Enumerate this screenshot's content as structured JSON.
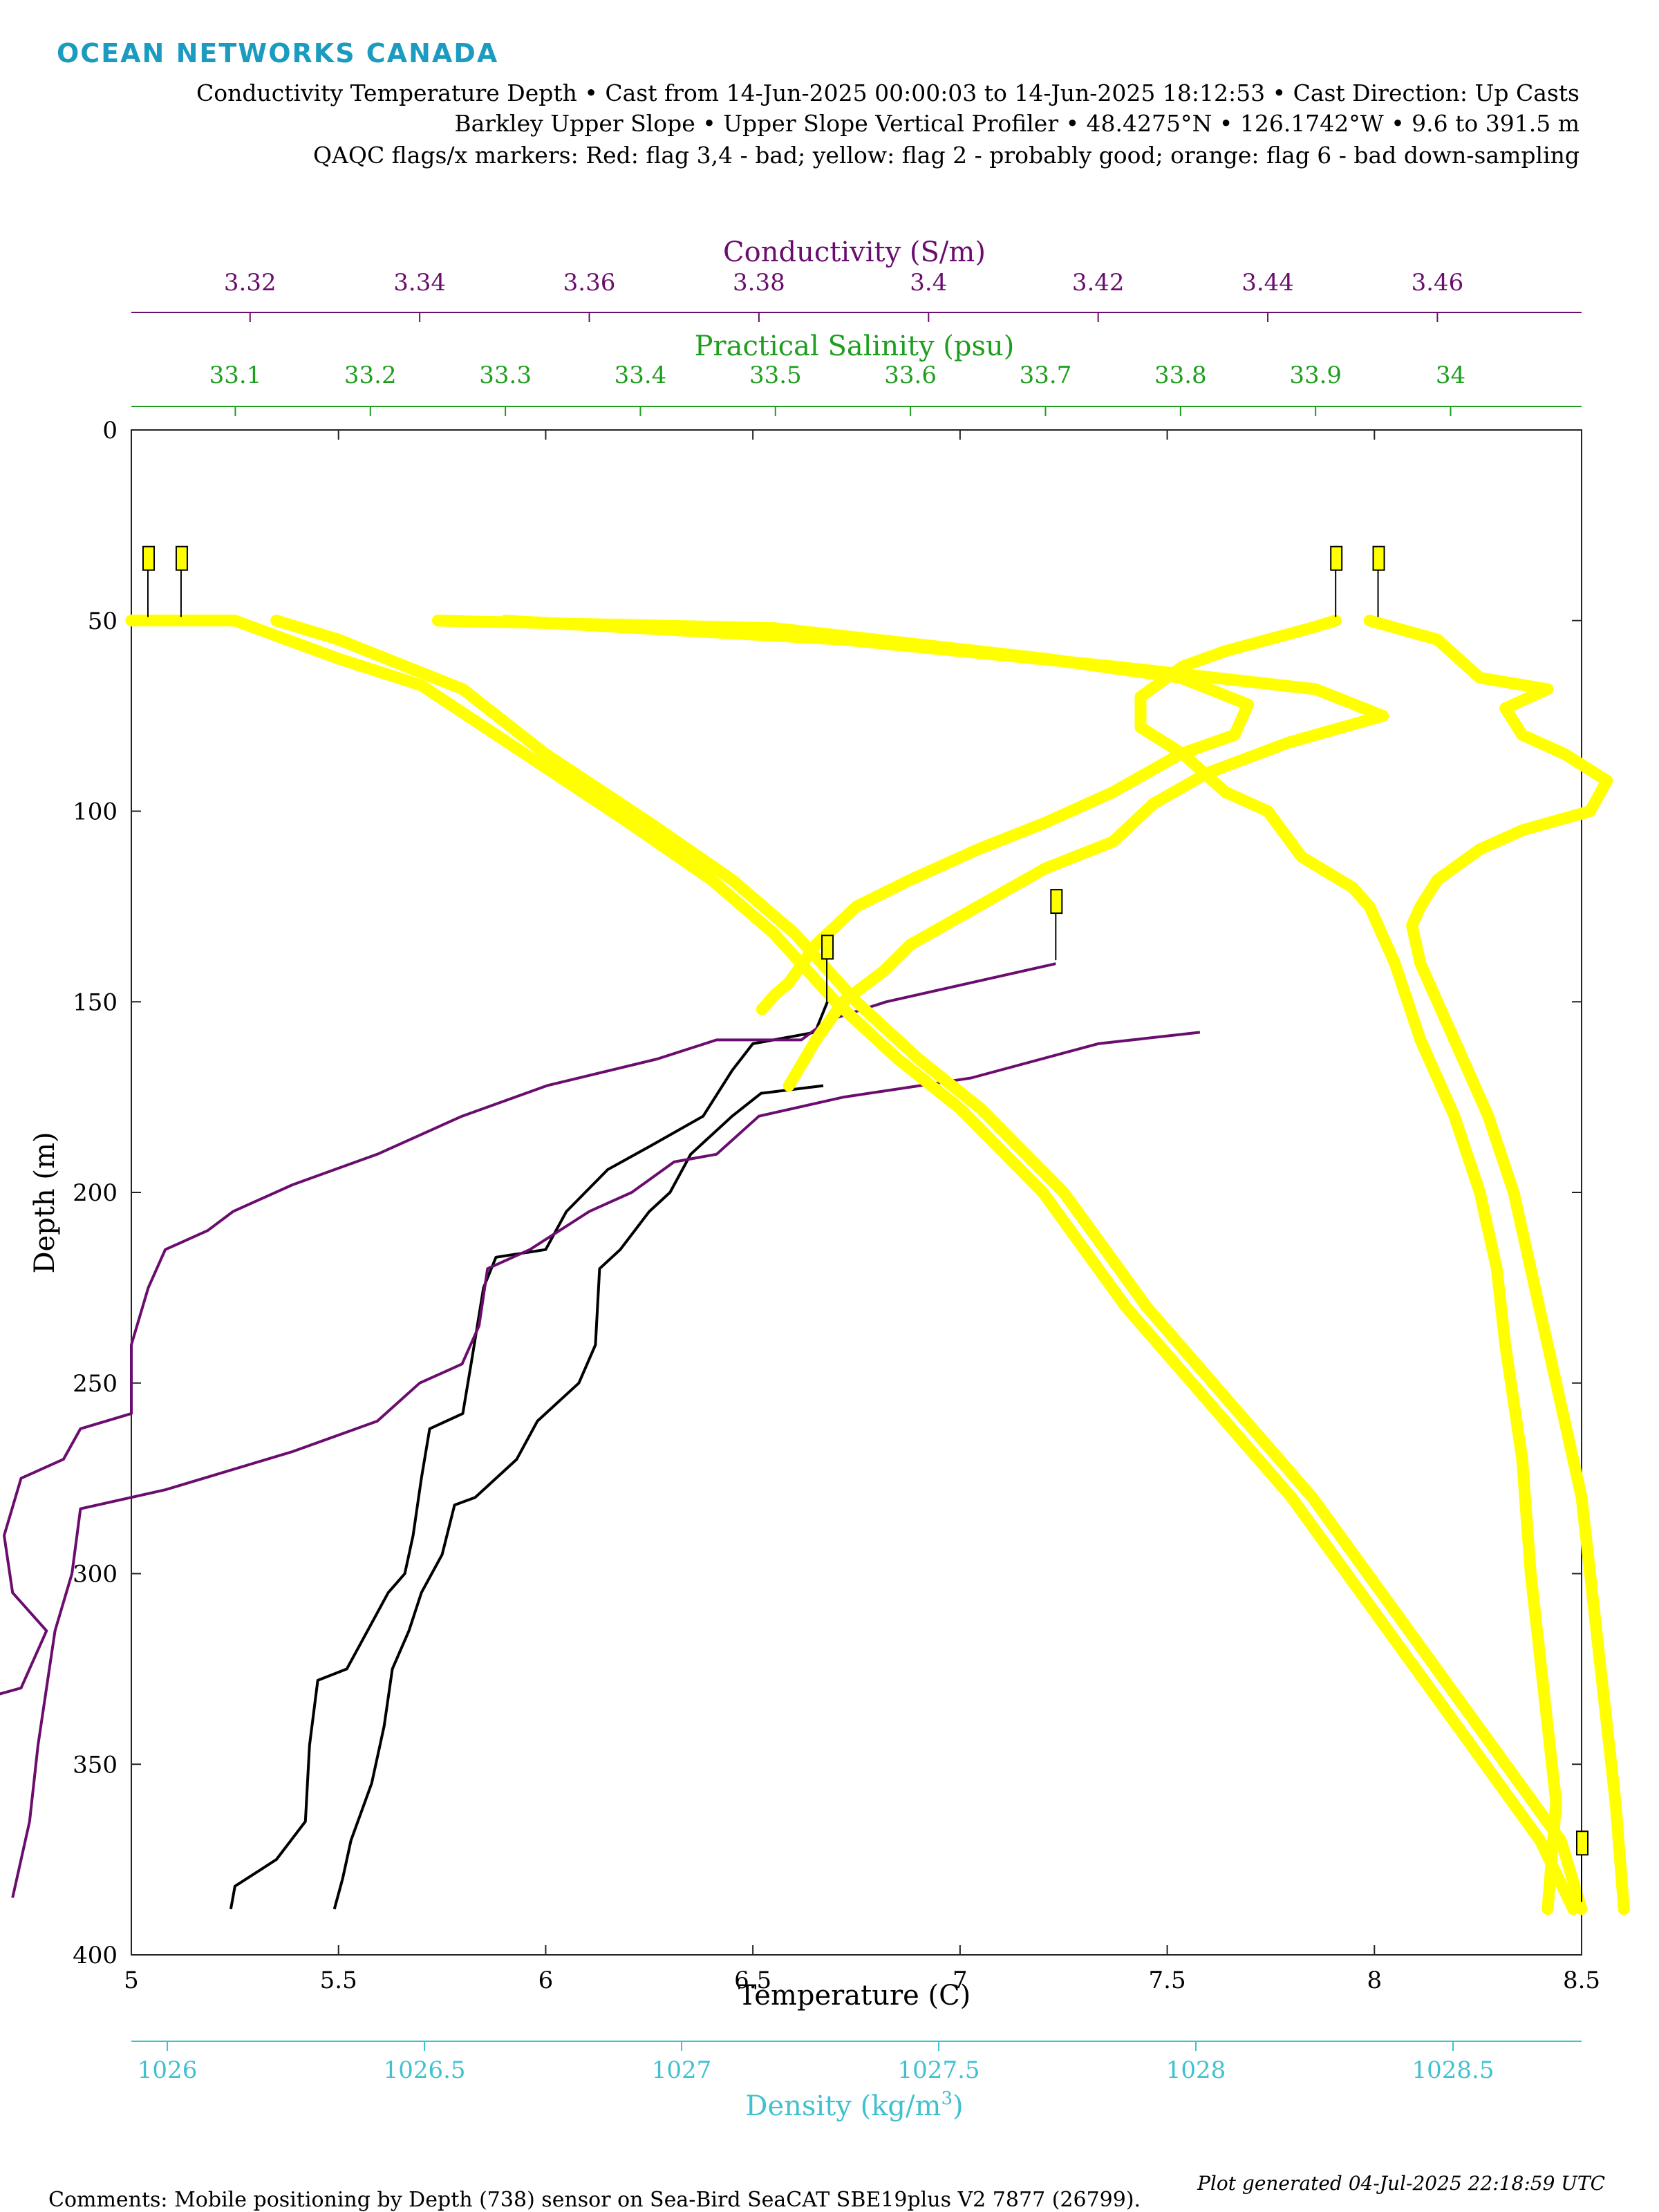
{
  "header": {
    "brand": "OCEAN NETWORKS CANADA",
    "line1": "Conductivity Temperature Depth • Cast from 14-Jun-2025 00:00:03 to 14-Jun-2025 18:12:53 • Cast Direction: Up Casts",
    "line2": "Barkley Upper Slope • Upper Slope Vertical Profiler • 48.4275°N • 126.1742°W • 9.6 to 391.5 m",
    "line3": "QAQC flags/x markers: Red: flag 3,4 - bad; yellow: flag 2 - probably good; orange: flag 6 - bad down-sampling"
  },
  "footer": {
    "comments": "Comments: Mobile positioning by Depth (738) sensor on Sea-Bird SeaCAT SBE19plus V2 7877 (26799).",
    "generated": "Plot generated 04-Jul-2025 22:18:59 UTC"
  },
  "colors": {
    "brand": "#1a9bbf",
    "conductivity": "#6a0d6e",
    "salinity": "#1e9e1e",
    "temperature": "#000000",
    "density": "#3fc1d0",
    "flag_probably_good": "#ffff00"
  },
  "chart_data": {
    "type": "line",
    "y_axis": {
      "label": "Depth (m)",
      "range": [
        0,
        400
      ],
      "inverted": true,
      "ticks": [
        "0",
        "50",
        "100",
        "150",
        "200",
        "250",
        "300",
        "350",
        "400"
      ]
    },
    "axes": {
      "temperature": {
        "label": "Temperature (C)",
        "position": "bottom",
        "range": [
          5,
          8.5
        ],
        "ticks": [
          5,
          5.5,
          6,
          6.5,
          7,
          7.5,
          8,
          8.5
        ],
        "tick_labels": [
          "5",
          "5.5",
          "6",
          "6.5",
          "7",
          "7.5",
          "8",
          "8.5"
        ]
      },
      "density": {
        "label": "Density (kg/m",
        "label_sup": "3",
        "label_end": ")",
        "position": "bottom-offset",
        "range": [
          1025.93,
          1028.75
        ],
        "ticks": [
          1026,
          1026.5,
          1027,
          1027.5,
          1028,
          1028.5
        ],
        "tick_labels": [
          "1026",
          "1026.5",
          "1027",
          "1027.5",
          "1028",
          "1028.5"
        ]
      },
      "conductivity": {
        "label": "Conductivity (S/m)",
        "position": "top",
        "range": [
          3.306,
          3.477
        ],
        "ticks": [
          3.32,
          3.34,
          3.36,
          3.38,
          3.4,
          3.42,
          3.44,
          3.46
        ],
        "tick_labels": [
          "3.32",
          "3.34",
          "3.36",
          "3.38",
          "3.4",
          "3.42",
          "3.44",
          "3.46"
        ]
      },
      "salinity": {
        "label": "Practical Salinity (psu)",
        "position": "top-offset",
        "range": [
          33.023,
          34.097
        ],
        "ticks": [
          33.1,
          33.2,
          33.3,
          33.4,
          33.5,
          33.6,
          33.7,
          33.8,
          33.9,
          34
        ],
        "tick_labels": [
          "33.1",
          "33.2",
          "33.3",
          "33.4",
          "33.5",
          "33.6",
          "33.7",
          "33.8",
          "33.9",
          "34"
        ]
      }
    },
    "series": [
      {
        "axis": "temperature",
        "flag": "good",
        "points": [
          [
            6.68,
            150
          ],
          [
            6.65,
            158
          ],
          [
            6.5,
            161
          ],
          [
            6.45,
            168
          ],
          [
            6.38,
            180
          ],
          [
            6.25,
            188
          ],
          [
            6.15,
            194
          ],
          [
            6.05,
            205
          ],
          [
            6.0,
            215
          ],
          [
            5.88,
            217
          ],
          [
            5.85,
            225
          ],
          [
            5.82,
            245
          ],
          [
            5.8,
            258
          ],
          [
            5.72,
            262
          ],
          [
            5.7,
            275
          ],
          [
            5.68,
            290
          ],
          [
            5.66,
            300
          ],
          [
            5.62,
            305
          ],
          [
            5.57,
            315
          ],
          [
            5.52,
            325
          ],
          [
            5.45,
            328
          ],
          [
            5.43,
            345
          ],
          [
            5.42,
            365
          ],
          [
            5.35,
            375
          ],
          [
            5.25,
            382
          ],
          [
            5.24,
            388
          ]
        ]
      },
      {
        "axis": "temperature",
        "flag": "good",
        "points": [
          [
            6.67,
            172
          ],
          [
            6.52,
            174
          ],
          [
            6.45,
            180
          ],
          [
            6.35,
            190
          ],
          [
            6.3,
            200
          ],
          [
            6.25,
            205
          ],
          [
            6.18,
            215
          ],
          [
            6.13,
            220
          ],
          [
            6.12,
            240
          ],
          [
            6.08,
            250
          ],
          [
            6.03,
            255
          ],
          [
            5.98,
            260
          ],
          [
            5.93,
            270
          ],
          [
            5.83,
            280
          ],
          [
            5.78,
            282
          ],
          [
            5.75,
            295
          ],
          [
            5.7,
            305
          ],
          [
            5.67,
            315
          ],
          [
            5.63,
            325
          ],
          [
            5.61,
            340
          ],
          [
            5.58,
            355
          ],
          [
            5.53,
            370
          ],
          [
            5.51,
            380
          ],
          [
            5.49,
            388
          ]
        ]
      },
      {
        "axis": "conductivity",
        "flag": "good",
        "points": [
          [
            3.415,
            140
          ],
          [
            3.405,
            145
          ],
          [
            3.395,
            150
          ],
          [
            3.388,
            155
          ],
          [
            3.385,
            160
          ],
          [
            3.375,
            160
          ],
          [
            3.368,
            165
          ],
          [
            3.355,
            172
          ],
          [
            3.345,
            180
          ],
          [
            3.335,
            190
          ],
          [
            3.325,
            198
          ],
          [
            3.318,
            205
          ],
          [
            3.315,
            210
          ],
          [
            3.31,
            215
          ],
          [
            3.308,
            225
          ],
          [
            3.306,
            240
          ],
          [
            3.306,
            258
          ],
          [
            3.3,
            262
          ],
          [
            3.298,
            270
          ],
          [
            3.293,
            275
          ],
          [
            3.291,
            290
          ],
          [
            3.292,
            305
          ],
          [
            3.296,
            315
          ],
          [
            3.293,
            330
          ],
          [
            3.285,
            335
          ],
          [
            3.283,
            360
          ],
          [
            3.275,
            375
          ],
          [
            3.262,
            385
          ]
        ]
      },
      {
        "axis": "conductivity",
        "flag": "good",
        "points": [
          [
            3.432,
            158
          ],
          [
            3.42,
            161
          ],
          [
            3.405,
            170
          ],
          [
            3.39,
            175
          ],
          [
            3.38,
            180
          ],
          [
            3.375,
            190
          ],
          [
            3.37,
            192
          ],
          [
            3.365,
            200
          ],
          [
            3.36,
            205
          ],
          [
            3.353,
            215
          ],
          [
            3.348,
            220
          ],
          [
            3.347,
            235
          ],
          [
            3.345,
            245
          ],
          [
            3.34,
            250
          ],
          [
            3.335,
            260
          ],
          [
            3.325,
            268
          ],
          [
            3.31,
            278
          ],
          [
            3.3,
            283
          ],
          [
            3.299,
            300
          ],
          [
            3.297,
            315
          ],
          [
            3.296,
            330
          ],
          [
            3.295,
            345
          ],
          [
            3.294,
            365
          ],
          [
            3.292,
            385
          ]
        ]
      },
      {
        "axis": "salinity",
        "flag": "probably-good",
        "points": [
          [
            33.25,
            50
          ],
          [
            33.5,
            52
          ],
          [
            33.7,
            60
          ],
          [
            33.8,
            65
          ],
          [
            33.85,
            72
          ],
          [
            33.84,
            80
          ],
          [
            33.8,
            85
          ],
          [
            33.75,
            95
          ],
          [
            33.7,
            103
          ],
          [
            33.65,
            110
          ],
          [
            33.6,
            118
          ],
          [
            33.56,
            125
          ],
          [
            33.53,
            135
          ],
          [
            33.51,
            145
          ],
          [
            33.5,
            148
          ],
          [
            33.49,
            152
          ]
        ]
      },
      {
        "axis": "salinity",
        "flag": "probably-good",
        "points": [
          [
            33.3,
            50
          ],
          [
            33.55,
            55
          ],
          [
            33.75,
            62
          ],
          [
            33.9,
            68
          ],
          [
            33.95,
            75
          ],
          [
            33.88,
            82
          ],
          [
            33.82,
            90
          ],
          [
            33.78,
            98
          ],
          [
            33.75,
            108
          ],
          [
            33.7,
            115
          ],
          [
            33.65,
            125
          ],
          [
            33.6,
            135
          ],
          [
            33.58,
            142
          ],
          [
            33.55,
            150
          ],
          [
            33.53,
            160
          ],
          [
            33.51,
            172
          ]
        ]
      },
      {
        "axis": "temperature",
        "flag": "probably-good",
        "points": [
          [
            5.0,
            50
          ],
          [
            5.25,
            50
          ],
          [
            5.5,
            60
          ],
          [
            5.7,
            67
          ],
          [
            5.95,
            85
          ],
          [
            6.2,
            103
          ],
          [
            6.4,
            118
          ],
          [
            6.55,
            132
          ],
          [
            6.7,
            150
          ],
          [
            6.85,
            165
          ],
          [
            7.0,
            178
          ],
          [
            7.2,
            200
          ],
          [
            7.4,
            230
          ],
          [
            7.6,
            255
          ],
          [
            7.8,
            280
          ],
          [
            8.0,
            310
          ],
          [
            8.2,
            340
          ],
          [
            8.4,
            370
          ],
          [
            8.48,
            388
          ]
        ]
      },
      {
        "axis": "temperature",
        "flag": "probably-good",
        "points": [
          [
            5.35,
            50
          ],
          [
            5.5,
            55
          ],
          [
            5.8,
            68
          ],
          [
            6.0,
            85
          ],
          [
            6.25,
            103
          ],
          [
            6.45,
            118
          ],
          [
            6.6,
            132
          ],
          [
            6.75,
            150
          ],
          [
            6.9,
            165
          ],
          [
            7.05,
            178
          ],
          [
            7.25,
            200
          ],
          [
            7.45,
            230
          ],
          [
            7.65,
            255
          ],
          [
            7.85,
            280
          ],
          [
            8.05,
            310
          ],
          [
            8.25,
            340
          ],
          [
            8.45,
            370
          ],
          [
            8.5,
            388
          ]
        ]
      },
      {
        "axis": "conductivity",
        "flag": "probably-good",
        "points": [
          [
            3.448,
            50
          ],
          [
            3.445,
            52
          ],
          [
            3.435,
            58
          ],
          [
            3.43,
            62
          ],
          [
            3.425,
            70
          ],
          [
            3.425,
            78
          ],
          [
            3.43,
            85
          ],
          [
            3.435,
            95
          ],
          [
            3.44,
            100
          ],
          [
            3.444,
            112
          ],
          [
            3.45,
            120
          ],
          [
            3.452,
            125
          ],
          [
            3.455,
            140
          ],
          [
            3.458,
            160
          ],
          [
            3.462,
            180
          ],
          [
            3.465,
            200
          ],
          [
            3.467,
            220
          ],
          [
            3.468,
            240
          ],
          [
            3.47,
            270
          ],
          [
            3.471,
            300
          ],
          [
            3.472,
            320
          ],
          [
            3.473,
            340
          ],
          [
            3.474,
            360
          ],
          [
            3.473,
            388
          ]
        ]
      },
      {
        "axis": "conductivity",
        "flag": "probably-good",
        "points": [
          [
            3.452,
            50
          ],
          [
            3.46,
            55
          ],
          [
            3.465,
            65
          ],
          [
            3.473,
            68
          ],
          [
            3.468,
            73
          ],
          [
            3.47,
            80
          ],
          [
            3.475,
            85
          ],
          [
            3.48,
            92
          ],
          [
            3.478,
            100
          ],
          [
            3.47,
            105
          ],
          [
            3.465,
            110
          ],
          [
            3.46,
            118
          ],
          [
            3.458,
            125
          ],
          [
            3.457,
            130
          ],
          [
            3.458,
            140
          ],
          [
            3.462,
            160
          ],
          [
            3.466,
            180
          ],
          [
            3.469,
            200
          ],
          [
            3.471,
            220
          ],
          [
            3.473,
            240
          ],
          [
            3.475,
            260
          ],
          [
            3.477,
            280
          ],
          [
            3.478,
            300
          ],
          [
            3.479,
            320
          ],
          [
            3.48,
            340
          ],
          [
            3.481,
            360
          ],
          [
            3.482,
            388
          ]
        ]
      }
    ],
    "flag_markers": [
      {
        "axis": "temperature",
        "x": 5.04,
        "y": 48
      },
      {
        "axis": "temperature",
        "x": 5.12,
        "y": 48
      },
      {
        "axis": "conductivity",
        "x": 3.448,
        "y": 48
      },
      {
        "axis": "conductivity",
        "x": 3.453,
        "y": 48
      },
      {
        "axis": "conductivity",
        "x": 3.388,
        "y": 150
      },
      {
        "axis": "conductivity",
        "x": 3.415,
        "y": 138
      },
      {
        "axis": "temperature",
        "x": 8.5,
        "y": 385
      }
    ]
  }
}
